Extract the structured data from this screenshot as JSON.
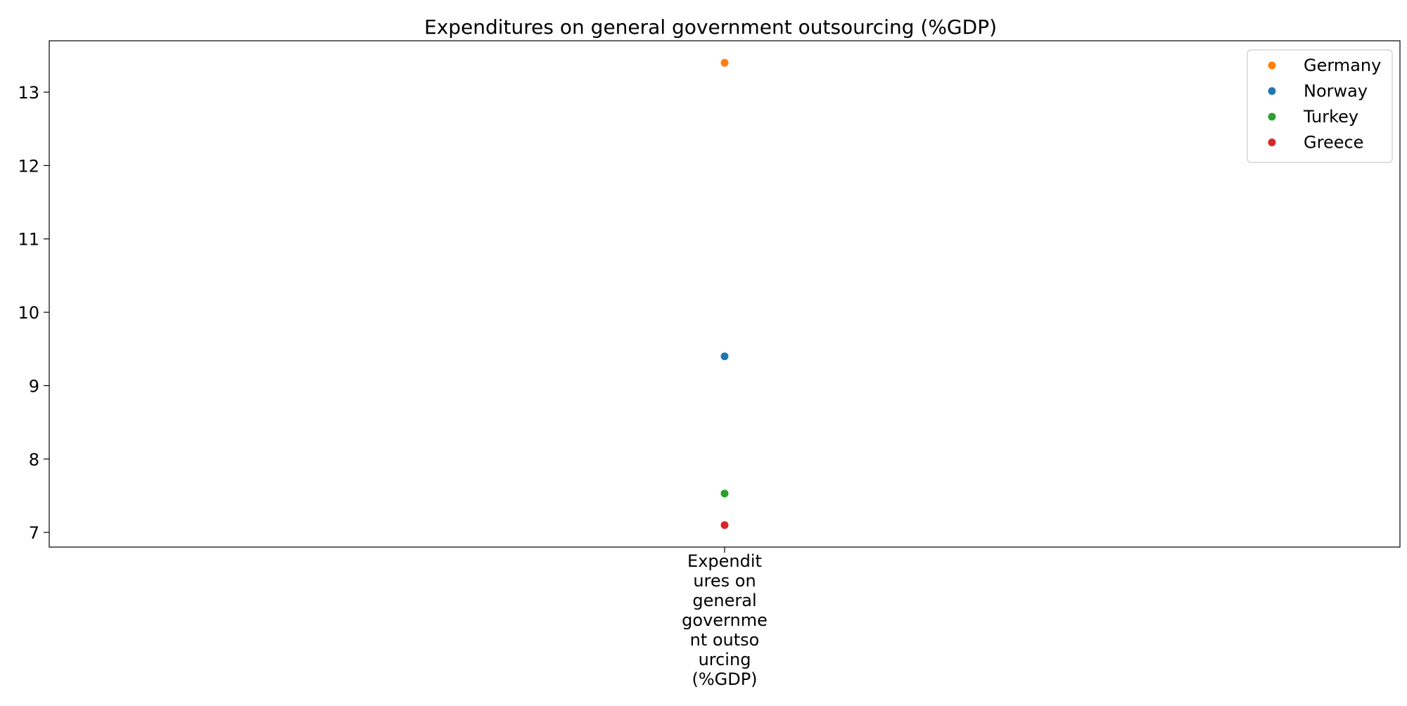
{
  "chart_data": {
    "type": "scatter",
    "title": "Expenditures on general government outsourcing (%GDP)",
    "xlabel": "",
    "ylabel": "",
    "categories": [
      "Expendit\nures on\ngeneral\ngovernme\nnt outso\nurcing\n(%GDP)"
    ],
    "y_ticks": [
      7,
      8,
      9,
      10,
      11,
      12,
      13
    ],
    "ylim": [
      6.8,
      13.7
    ],
    "grid": false,
    "legend_position": "top-right",
    "series": [
      {
        "name": "Germany",
        "color": "#ff7f0e",
        "values": [
          13.4
        ]
      },
      {
        "name": "Norway",
        "color": "#1f77b4",
        "values": [
          9.4
        ]
      },
      {
        "name": "Turkey",
        "color": "#2ca02c",
        "values": [
          7.53
        ]
      },
      {
        "name": "Greece",
        "color": "#d62728",
        "values": [
          7.1
        ]
      }
    ]
  }
}
